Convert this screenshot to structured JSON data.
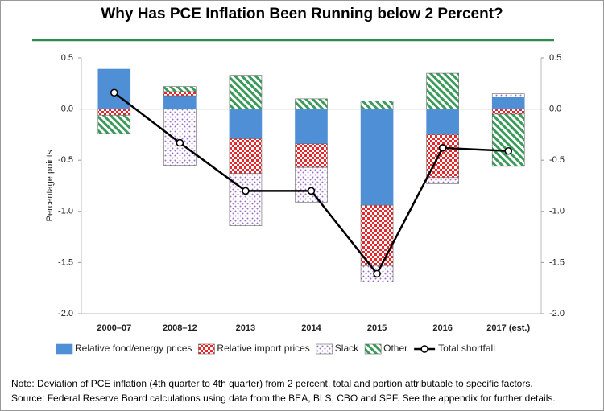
{
  "chart_data": {
    "type": "bar",
    "title": "Why Has PCE Inflation Been Running below 2 Percent?",
    "y_label": "Percentage points",
    "categories": [
      "2000–07",
      "2008–12",
      "2013",
      "2014",
      "2015",
      "2016",
      "2017 (est.)"
    ],
    "series": [
      {
        "name": "Relative food/energy prices",
        "color": "#4f8fd6",
        "pattern": "solid",
        "values": [
          0.39,
          0.13,
          -0.29,
          -0.34,
          -0.94,
          -0.25,
          0.12
        ]
      },
      {
        "name": "Relative import prices",
        "color": "#e8262a",
        "pattern": "checker",
        "values": [
          -0.06,
          0.04,
          -0.34,
          -0.23,
          -0.59,
          -0.42,
          -0.05
        ]
      },
      {
        "name": "Slack",
        "color": "#9b6fc8",
        "pattern": "dots",
        "values": [
          0,
          -0.55,
          -0.51,
          -0.34,
          -0.16,
          -0.06,
          0.03
        ]
      },
      {
        "name": "Other",
        "color": "#3a9a5a",
        "pattern": "stripes",
        "values": [
          -0.18,
          0.05,
          0.33,
          0.1,
          0.08,
          0.35,
          -0.51
        ]
      },
      {
        "name": "Total shortfall",
        "type": "line",
        "color": "#000000",
        "values": [
          0.16,
          -0.33,
          -0.8,
          -0.8,
          -1.61,
          -0.38,
          -0.41
        ]
      }
    ],
    "ylim": [
      -2,
      0.5
    ],
    "yticks": [
      {
        "value": -2,
        "label": "-2.0"
      },
      -1.5,
      {
        "value": -1,
        "label": "-1.0"
      },
      -0.5,
      {
        "value": 0,
        "label": "0.0"
      },
      0.5
    ],
    "notes": [
      "Note: Deviation of PCE inflation (4th quarter to 4th quarter) from 2 percent, total and portion attributable to specific factors.",
      "Source:  Federal Reserve Board calculations using data from the BEA, BLS, CBO and SPF.  See the appendix for further details."
    ]
  }
}
